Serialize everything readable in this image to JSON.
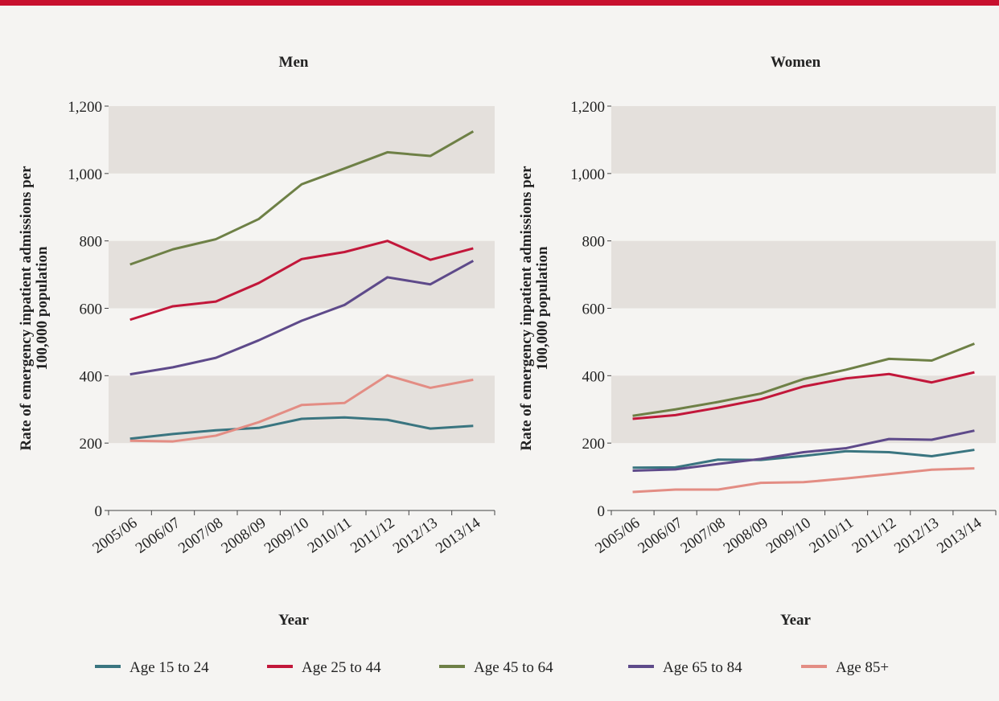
{
  "chart_data": [
    {
      "type": "line",
      "title": "Men",
      "ylabel": [
        "Rate of emergency inpatient admissions per",
        "100,000 population"
      ],
      "xlabel": "Year",
      "categories": [
        "2005/06",
        "2006/07",
        "2007/08",
        "2008/09",
        "2009/10",
        "2010/11",
        "2011/12",
        "2012/13",
        "2013/14"
      ],
      "ylim": [
        0,
        1200
      ],
      "yticks": [
        0,
        200,
        400,
        600,
        800,
        {
          "value": 1000,
          "label": "1,000"
        },
        {
          "value": 1200,
          "label": "1,200"
        }
      ],
      "series": [
        {
          "name": "Age 15 to 24",
          "color": "#3a7580",
          "values": [
            213,
            227,
            238,
            245,
            272,
            276,
            269,
            243,
            251
          ]
        },
        {
          "name": "Age 25 to 44",
          "color": "#c2173a",
          "values": [
            566,
            606,
            620,
            675,
            746,
            767,
            800,
            744,
            778
          ]
        },
        {
          "name": "Age 45 to 64",
          "color": "#6e8046",
          "values": [
            730,
            775,
            805,
            865,
            968,
            1015,
            1063,
            1052,
            1125
          ]
        },
        {
          "name": "Age 65 to 84",
          "color": "#5e4a8a",
          "values": [
            404,
            425,
            453,
            505,
            563,
            610,
            692,
            671,
            741
          ]
        },
        {
          "name": "Age 85+",
          "color": "#e38d84",
          "values": [
            207,
            205,
            222,
            262,
            313,
            319,
            401,
            364,
            388
          ]
        }
      ]
    },
    {
      "type": "line",
      "title": "Women",
      "ylabel": [
        "Rate of emergency inpatient admissions per",
        "100,000 population"
      ],
      "xlabel": "Year",
      "categories": [
        "2005/06",
        "2006/07",
        "2007/08",
        "2008/09",
        "2009/10",
        "2010/11",
        "2011/12",
        "2012/13",
        "2013/14"
      ],
      "ylim": [
        0,
        1200
      ],
      "yticks": [
        0,
        200,
        400,
        600,
        800,
        {
          "value": 1000,
          "label": "1,000"
        },
        {
          "value": 1200,
          "label": "1,200"
        }
      ],
      "series": [
        {
          "color": "#3a7580",
          "values": [
            127,
            128,
            151,
            150,
            162,
            176,
            173,
            161,
            180
          ]
        },
        {
          "color": "#c2173a",
          "values": [
            272,
            283,
            305,
            330,
            368,
            392,
            405,
            380,
            410
          ]
        },
        {
          "color": "#6e8046",
          "values": [
            281,
            300,
            322,
            347,
            390,
            418,
            450,
            445,
            495
          ]
        },
        {
          "color": "#5e4a8a",
          "values": [
            118,
            122,
            138,
            153,
            173,
            185,
            212,
            210,
            237
          ]
        },
        {
          "color": "#e38d84",
          "values": [
            55,
            62,
            62,
            82,
            84,
            95,
            108,
            121,
            125
          ]
        }
      ]
    }
  ]
}
